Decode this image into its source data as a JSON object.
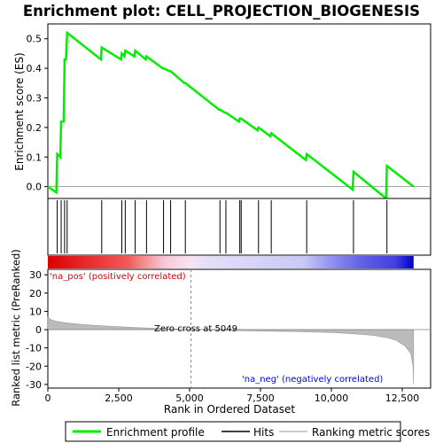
{
  "chart_data": {
    "type": "line",
    "title": "Enrichment plot: CELL_PROJECTION_BIOGENESIS",
    "top_panel": {
      "ylabel": "Enrichment score (ES)",
      "ylim": [
        -0.04,
        0.55
      ],
      "yticks": [
        0.0,
        0.1,
        0.2,
        0.3,
        0.4,
        0.5
      ],
      "ytick_labels": [
        "0.0",
        "0.1",
        "0.2",
        "0.3",
        "0.4",
        "0.5"
      ],
      "series": [
        {
          "name": "Enrichment profile",
          "color": "#00ee00",
          "x": [
            0,
            300,
            330,
            440,
            470,
            560,
            590,
            640,
            680,
            1870,
            1900,
            2580,
            2610,
            2700,
            2730,
            3050,
            3080,
            3450,
            3480,
            4050,
            4080,
            4300,
            4330,
            4820,
            4850,
            6040,
            6070,
            6250,
            6280,
            6740,
            6770,
            6790,
            6820,
            7400,
            7430,
            7850,
            7880,
            9100,
            9130,
            10750,
            10780,
            11930,
            11960,
            12900
          ],
          "y": [
            0.0,
            -0.02,
            0.11,
            0.1,
            0.22,
            0.22,
            0.43,
            0.43,
            0.52,
            0.43,
            0.47,
            0.43,
            0.45,
            0.44,
            0.46,
            0.44,
            0.46,
            0.43,
            0.44,
            0.4,
            0.4,
            0.39,
            0.39,
            0.35,
            0.35,
            0.26,
            0.26,
            0.25,
            0.25,
            0.22,
            0.23,
            0.23,
            0.23,
            0.19,
            0.2,
            0.17,
            0.18,
            0.09,
            0.11,
            -0.01,
            0.05,
            -0.04,
            0.07,
            0.0
          ]
        }
      ]
    },
    "hits_panel": {
      "hit_positions": [
        330,
        470,
        590,
        680,
        1900,
        2610,
        2730,
        3080,
        3480,
        4080,
        4330,
        4850,
        6070,
        6280,
        6770,
        6820,
        7430,
        7880,
        9130,
        10780,
        11960
      ]
    },
    "bottom_panel": {
      "ylabel": "Ranked list metric (PreRanked)",
      "xlabel": "Rank in Ordered Dataset",
      "xlim": [
        0,
        13500
      ],
      "xticks": [
        0,
        2500,
        5000,
        7500,
        10000,
        12500
      ],
      "xtick_labels": [
        "0",
        "2,500",
        "5,000",
        "7,500",
        "10,000",
        "12,500"
      ],
      "ylim": [
        -32,
        33
      ],
      "yticks": [
        30,
        20,
        10,
        0,
        -10,
        -20,
        -30
      ],
      "ytick_labels": [
        "30",
        "20",
        "10",
        "0",
        "-10",
        "-20",
        "-30"
      ],
      "metric_x": [
        0,
        100,
        300,
        600,
        1000,
        1500,
        2000,
        2500,
        3000,
        3500,
        4000,
        4500,
        5049,
        6000,
        7000,
        8000,
        9000,
        10000,
        10500,
        11000,
        11500,
        12000,
        12300,
        12600,
        12800,
        12880,
        12900
      ],
      "metric_y": [
        7,
        5.5,
        4.5,
        3.8,
        3.1,
        2.5,
        2.0,
        1.6,
        1.2,
        0.9,
        0.6,
        0.3,
        0.0,
        -0.3,
        -0.6,
        -0.9,
        -1.2,
        -1.6,
        -2.0,
        -2.5,
        -3.2,
        -4.5,
        -6.0,
        -9.0,
        -13.0,
        -20.0,
        -30.0
      ],
      "zero_cross_label": "Zero cross at 5049",
      "zero_cross": 5049,
      "pos_label": "'na_pos' (positively correlated)",
      "neg_label": "'na_neg' (negatively correlated)",
      "pos_color": "#dd0000",
      "neg_color": "#0000dd"
    },
    "legend": {
      "placement": "bottom",
      "entries": [
        {
          "label": "Enrichment profile",
          "color": "#00ee00",
          "kind": "line"
        },
        {
          "label": "Hits",
          "color": "#000000",
          "kind": "line"
        },
        {
          "label": "Ranking metric scores",
          "color": "#bbbbbb",
          "kind": "line"
        }
      ]
    }
  }
}
